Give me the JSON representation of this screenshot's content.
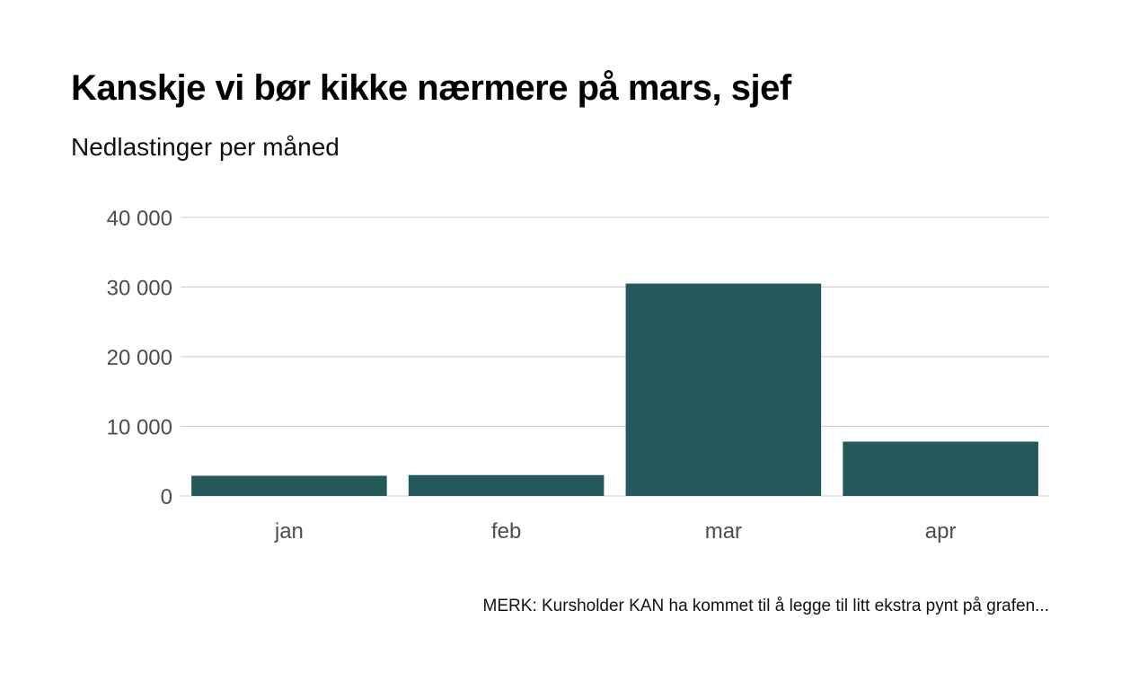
{
  "chart_data": {
    "type": "bar",
    "title": "Kanskje vi bør kikke nærmere på mars, sjef",
    "subtitle": "Nedlastinger per måned",
    "caption": "MERK: Kursholder KAN ha kommet til å legge til litt ekstra pynt på grafen...",
    "xlabel": "",
    "ylabel": "",
    "categories": [
      "jan",
      "feb",
      "mar",
      "apr"
    ],
    "values": [
      2900,
      3000,
      30500,
      7800
    ],
    "ylim": [
      0,
      40000
    ],
    "yticks": [
      0,
      10000,
      20000,
      30000,
      40000
    ],
    "ytick_labels": [
      "0",
      "10 000",
      "20 000",
      "30 000",
      "40 000"
    ],
    "grid": "horizontal",
    "legend": "none",
    "bar_color": "#255a5c"
  }
}
